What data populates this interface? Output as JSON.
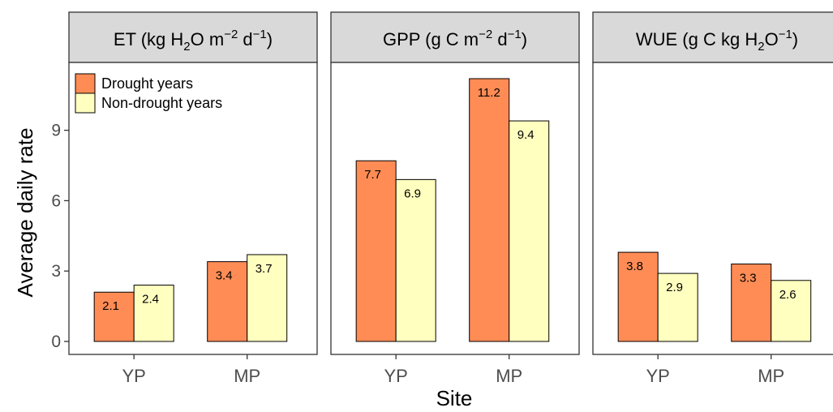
{
  "chart_data": {
    "type": "bar",
    "xlabel": "Site",
    "ylabel": "Average daily rate",
    "ylim": [
      0,
      12
    ],
    "yticks": [
      0,
      3,
      6,
      9
    ],
    "categories": [
      "YP",
      "MP"
    ],
    "legend": {
      "placement": "top-left",
      "entries": [
        "Drought years",
        "Non-drought years"
      ]
    },
    "colors": {
      "drought": "#FF8C55",
      "non_drought": "#FFFFC0",
      "strip": "#D9D9D9",
      "axis": "#333333"
    },
    "panels": [
      {
        "title_parts": [
          "ET (kg H",
          "2",
          "O m",
          "−2",
          " d",
          "−1",
          ")"
        ],
        "series": [
          {
            "name": "Drought years",
            "values": [
              2.1,
              3.4
            ],
            "labels": [
              "2.1",
              "3.4"
            ]
          },
          {
            "name": "Non-drought years",
            "values": [
              2.4,
              3.7
            ],
            "labels": [
              "2.4",
              "3.7"
            ]
          }
        ]
      },
      {
        "title_parts": [
          "GPP (g C m",
          "−2",
          " d",
          "−1",
          ")"
        ],
        "series": [
          {
            "name": "Drought years",
            "values": [
              7.7,
              11.2
            ],
            "labels": [
              "7.7",
              "11.2"
            ]
          },
          {
            "name": "Non-drought years",
            "values": [
              6.9,
              9.4
            ],
            "labels": [
              "6.9",
              "9.4"
            ]
          }
        ]
      },
      {
        "title_parts": [
          "WUE (g C kg H",
          "2",
          "O",
          "−1",
          ")"
        ],
        "series": [
          {
            "name": "Drought years",
            "values": [
              3.8,
              3.3
            ],
            "labels": [
              "3.8",
              "3.3"
            ]
          },
          {
            "name": "Non-drought years",
            "values": [
              2.9,
              2.6
            ],
            "labels": [
              "2.9",
              "2.6"
            ]
          }
        ]
      }
    ]
  }
}
